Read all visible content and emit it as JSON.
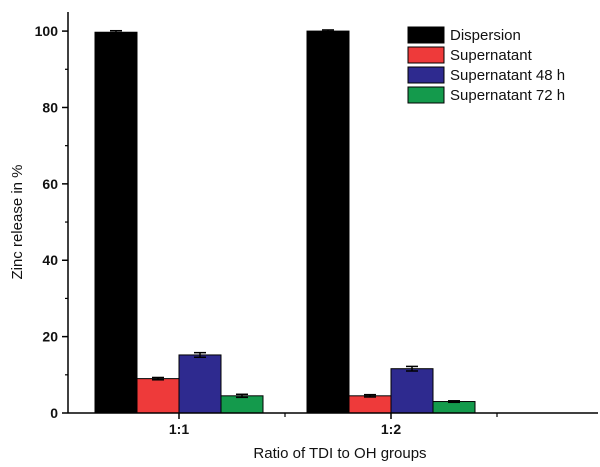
{
  "chart_data": {
    "type": "bar",
    "title": "",
    "xlabel": "Ratio of TDI to OH groups",
    "ylabel": "Zinc release in %",
    "ylim": [
      0,
      105
    ],
    "yticks": [
      0,
      20,
      40,
      60,
      80,
      100
    ],
    "categories": [
      "1:1",
      "1:2"
    ],
    "legend_position": "top-right",
    "grid": false,
    "error_bars": true,
    "series": [
      {
        "name": "Dispersion",
        "color": "#000000",
        "values": [
          99.7,
          100.0
        ],
        "errors": [
          0.4,
          0.3
        ]
      },
      {
        "name": "Supernatant",
        "color": "#ee3a3a",
        "values": [
          9.0,
          4.5
        ],
        "errors": [
          0.3,
          0.3
        ]
      },
      {
        "name": "Supernatant 48 h",
        "color": "#2e2a8f",
        "values": [
          15.2,
          11.6
        ],
        "errors": [
          0.6,
          0.6
        ]
      },
      {
        "name": "Supernatant 72 h",
        "color": "#149a4c",
        "values": [
          4.5,
          3.0
        ],
        "errors": [
          0.4,
          0.2
        ]
      }
    ]
  }
}
